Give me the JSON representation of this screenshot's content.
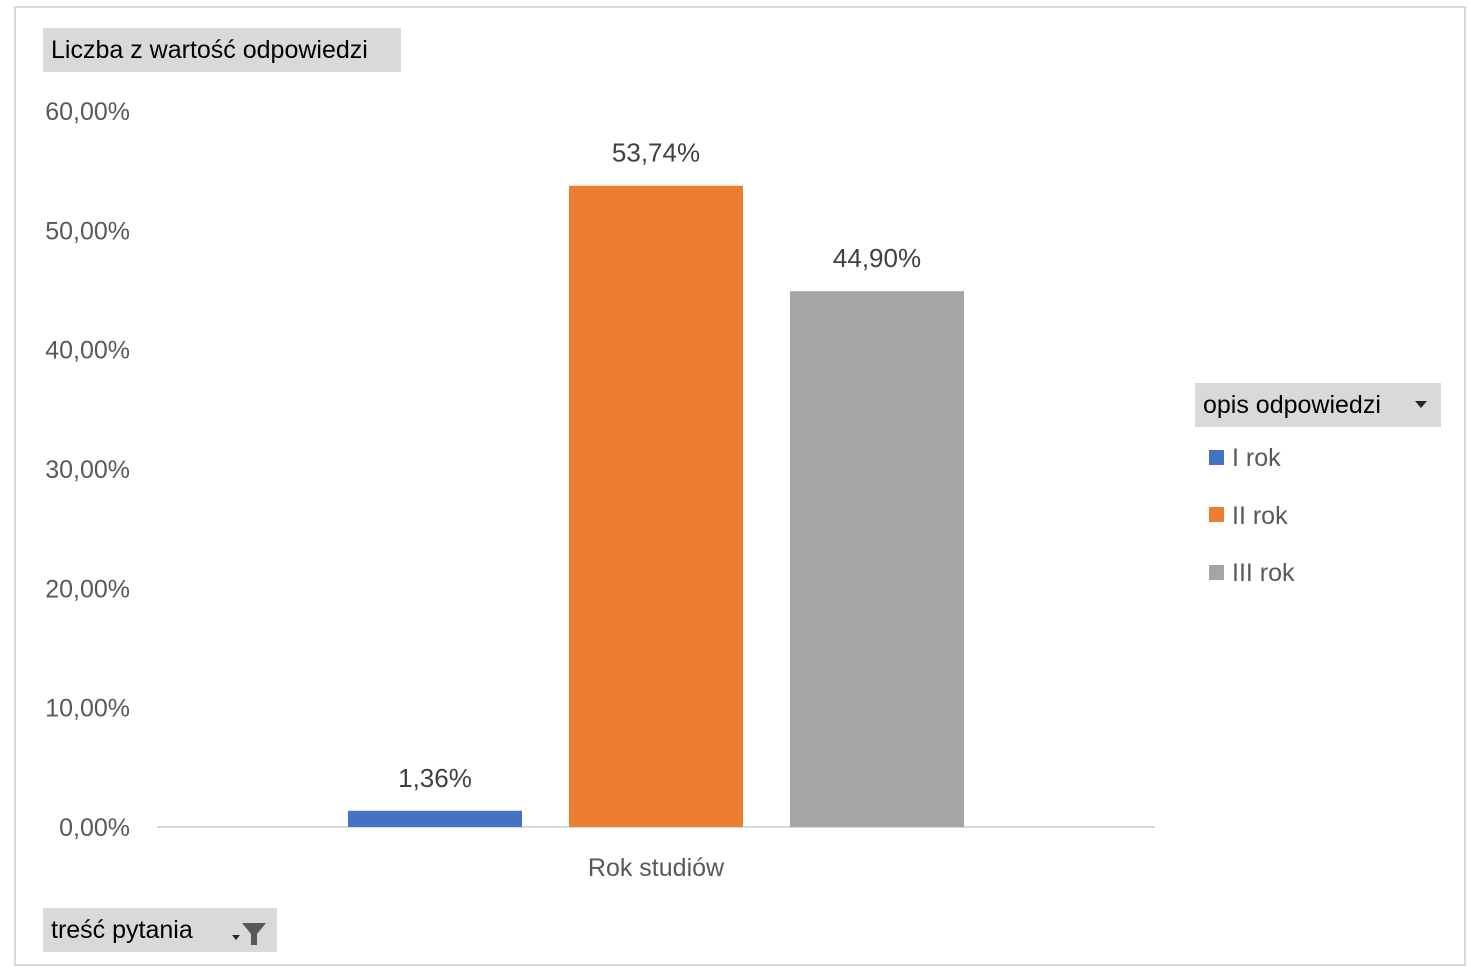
{
  "value_field": {
    "label": "Liczba z wartość odpowiedzi"
  },
  "legend_field": {
    "label": "opis odpowiedzi"
  },
  "filter_field": {
    "label": "treść pytania"
  },
  "chart_data": {
    "type": "bar",
    "categories": [
      "Rok studiów"
    ],
    "series": [
      {
        "name": "I rok",
        "values": [
          1.36
        ],
        "label": "1,36%",
        "color": "#4472c4"
      },
      {
        "name": "II rok",
        "values": [
          53.74
        ],
        "label": "53,74%",
        "color": "#ed7d31"
      },
      {
        "name": "III rok",
        "values": [
          44.9
        ],
        "label": "44,90%",
        "color": "#a5a5a5"
      }
    ],
    "ylim": [
      0,
      60
    ],
    "yticks": [
      0,
      10,
      20,
      30,
      40,
      50,
      60
    ],
    "ytick_labels": [
      "0,00%",
      "10,00%",
      "20,00%",
      "30,00%",
      "40,00%",
      "50,00%",
      "60,00%"
    ],
    "grid": false,
    "legend": "right"
  }
}
